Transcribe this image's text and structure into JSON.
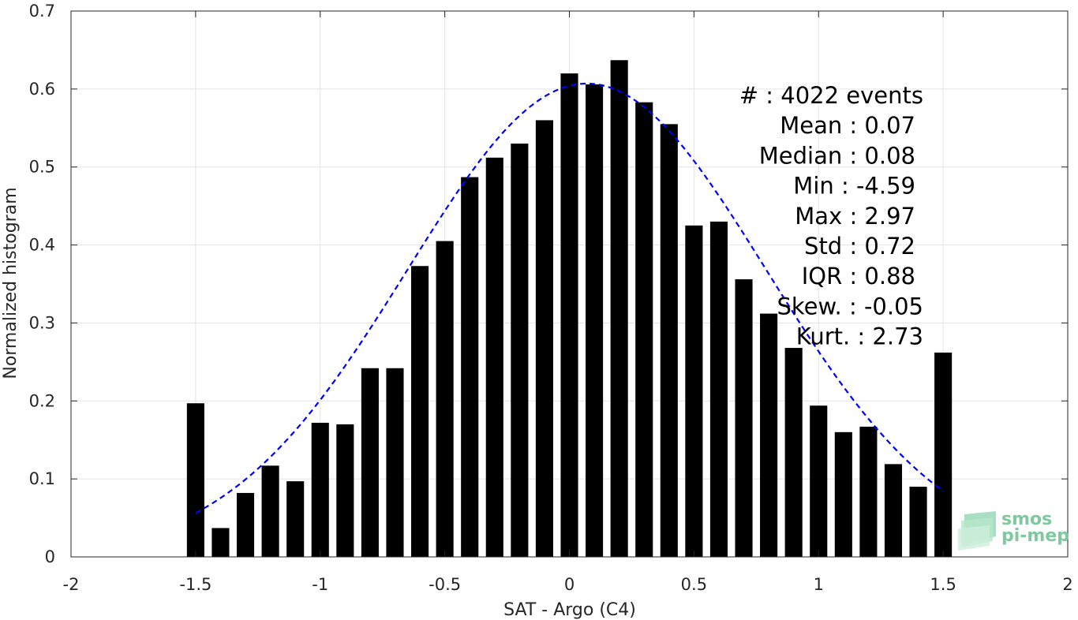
{
  "chart_data": {
    "type": "bar",
    "title": "",
    "xlabel": "SAT - Argo (C4)",
    "ylabel": "Normalized histogram",
    "xlim": [
      -2,
      2
    ],
    "ylim": [
      0,
      0.7
    ],
    "xticks": [
      -2,
      -1.5,
      -1,
      -0.5,
      0,
      0.5,
      1,
      1.5,
      2
    ],
    "xtick_labels": [
      "-2",
      "-1.5",
      "-1",
      "-0.5",
      "0",
      "0.5",
      "1",
      "1.5",
      "2"
    ],
    "yticks": [
      0,
      0.1,
      0.2,
      0.3,
      0.4,
      0.5,
      0.6,
      0.7
    ],
    "ytick_labels": [
      "0",
      "0.1",
      "0.2",
      "0.3",
      "0.4",
      "0.5",
      "0.6",
      "0.7"
    ],
    "grid": true,
    "bar_color": "#000000",
    "fit_color": "#0000ff",
    "bins": [
      -1.5,
      -1.4,
      -1.3,
      -1.2,
      -1.1,
      -1.0,
      -0.9,
      -0.8,
      -0.7,
      -0.6,
      -0.5,
      -0.4,
      -0.3,
      -0.2,
      -0.1,
      0.0,
      0.1,
      0.2,
      0.3,
      0.4,
      0.5,
      0.6,
      0.7,
      0.8,
      0.9,
      1.0,
      1.1,
      1.2,
      1.3,
      1.4,
      1.5
    ],
    "values": [
      0.197,
      0.037,
      0.082,
      0.117,
      0.097,
      0.172,
      0.17,
      0.242,
      0.242,
      0.373,
      0.405,
      0.487,
      0.512,
      0.53,
      0.56,
      0.62,
      0.606,
      0.637,
      0.583,
      0.555,
      0.425,
      0.43,
      0.356,
      0.312,
      0.268,
      0.194,
      0.16,
      0.167,
      0.119,
      0.09,
      0.262
    ],
    "fit": {
      "style": "dashed",
      "mean": 0.07,
      "std": 0.72,
      "peak": 0.607,
      "x_range": [
        -1.5,
        1.5
      ]
    },
    "stats": [
      "#  : 4022 events",
      "Mean : 0.07",
      "Median : 0.08",
      "Min : -4.59",
      "Max : 2.97",
      "Std : 0.72",
      "IQR : 0.88",
      "Skew. : -0.05",
      "Kurt. : 2.73"
    ]
  },
  "logo": {
    "line1": "smos",
    "line2": "pi-mep",
    "color": "#7fc8a0"
  }
}
